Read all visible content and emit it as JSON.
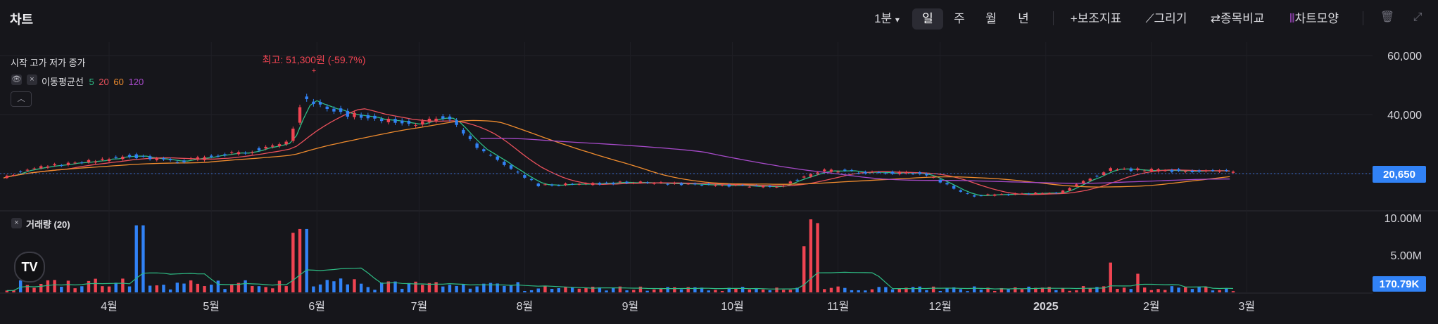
{
  "header": {
    "title": "차트",
    "interval": "1분",
    "periods": [
      "일",
      "주",
      "월",
      "년"
    ],
    "active_period": "일",
    "tools": [
      "보조지표",
      "그리기",
      "종목비교",
      "차트모양"
    ]
  },
  "legend": {
    "ohlc_label": "시작 고가 저가 종가",
    "ma_label": "이동평균선",
    "ma_periods": [
      "5",
      "20",
      "60",
      "120"
    ],
    "volume_label": "거래량 (20)"
  },
  "annotation": {
    "high_label": "최고: 51,300원 (-59.7%)"
  },
  "price_badge": "20,650",
  "volume_badge": "170.79K",
  "colors": {
    "up": "#f04452",
    "down": "#3182f6",
    "ma5": "#2ebd85",
    "ma20": "#e8505b",
    "ma60": "#f08c2e",
    "ma120": "#a64ac9",
    "badge": "#3182f6"
  },
  "chart_data": {
    "type": "candlestick",
    "price_axis": {
      "ticks": [
        60000,
        40000,
        20000
      ],
      "tick_labels": [
        "60,000",
        "40,000",
        ""
      ]
    },
    "volume_axis": {
      "ticks": [
        10000000,
        5000000
      ],
      "tick_labels": [
        "10.00M",
        "5.00M"
      ]
    },
    "x_ticks": [
      "4월",
      "5월",
      "6월",
      "7월",
      "8월",
      "9월",
      "10월",
      "11월",
      "12월",
      "2025",
      "2월",
      "3월"
    ],
    "last_close": 20650,
    "last_volume": 170790,
    "high": 51300,
    "price_keypoints": [
      {
        "date": "2024-03-01",
        "close": 19000
      },
      {
        "date": "2024-03-10",
        "close": 22000
      },
      {
        "date": "2024-04-08",
        "close": 26000
      },
      {
        "date": "2024-04-20",
        "close": 24000
      },
      {
        "date": "2024-05-10",
        "close": 27000
      },
      {
        "date": "2024-05-24",
        "close": 31000
      },
      {
        "date": "2024-05-28",
        "close": 45000
      },
      {
        "date": "2024-06-10",
        "close": 40000
      },
      {
        "date": "2024-06-28",
        "close": 37000
      },
      {
        "date": "2024-07-10",
        "close": 39000
      },
      {
        "date": "2024-07-18",
        "close": 29000
      },
      {
        "date": "2024-08-05",
        "close": 16000
      },
      {
        "date": "2024-09-01",
        "close": 17000
      },
      {
        "date": "2024-10-14",
        "close": 15500
      },
      {
        "date": "2024-10-28",
        "close": 21000
      },
      {
        "date": "2024-11-26",
        "close": 20000
      },
      {
        "date": "2024-12-10",
        "close": 12500
      },
      {
        "date": "2025-01-05",
        "close": 13500
      },
      {
        "date": "2025-01-20",
        "close": 21500
      },
      {
        "date": "2025-02-25",
        "close": 20650
      }
    ],
    "volume_spikes": [
      {
        "date": "2024-04-10",
        "volume": 9000000
      },
      {
        "date": "2024-05-26",
        "volume": 8000000
      },
      {
        "date": "2024-05-28",
        "volume": 8500000
      },
      {
        "date": "2024-10-22",
        "volume": 6200000
      },
      {
        "date": "2024-10-24",
        "volume": 9800000
      },
      {
        "date": "2024-10-26",
        "volume": 9300000
      },
      {
        "date": "2025-01-20",
        "volume": 4000000
      },
      {
        "date": "2025-01-28",
        "volume": 2500000
      }
    ]
  }
}
